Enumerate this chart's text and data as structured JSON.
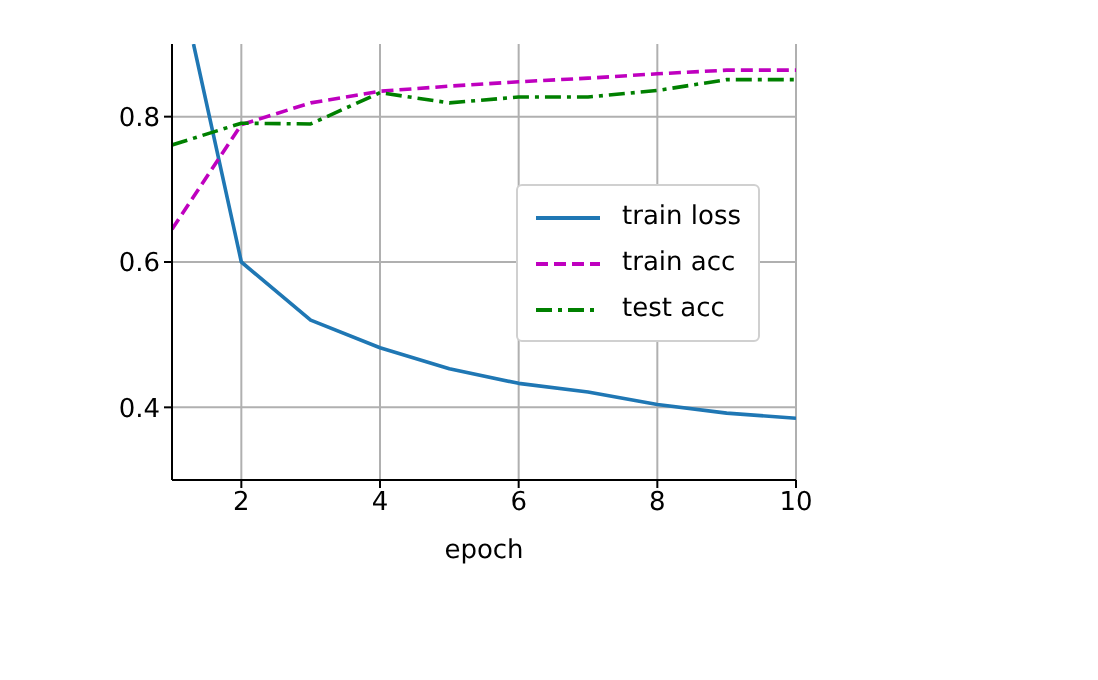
{
  "chart_data": {
    "type": "line",
    "xlabel": "epoch",
    "x": [
      1,
      2,
      3,
      4,
      5,
      6,
      7,
      8,
      9,
      10
    ],
    "xlim": [
      1,
      10
    ],
    "xticks": [
      2,
      4,
      6,
      8,
      10
    ],
    "ylim": [
      0.3,
      0.9
    ],
    "yticks": [
      0.4,
      0.6,
      0.8
    ],
    "grid": true,
    "legend": "right",
    "marker": "none",
    "series": [
      {
        "name": "train loss",
        "color": "#1f77b4",
        "line_style": "solid",
        "x": [
          1.31,
          2,
          3,
          4,
          5,
          6,
          7,
          8,
          9,
          10
        ],
        "values": [
          0.9,
          0.6,
          0.52,
          0.482,
          0.453,
          0.433,
          0.421,
          0.404,
          0.392,
          0.385
        ]
      },
      {
        "name": "train acc",
        "color": "#bf00bf",
        "line_style": "dashed",
        "values": [
          0.645,
          0.789,
          0.819,
          0.835,
          0.842,
          0.848,
          0.853,
          0.859,
          0.864,
          0.864
        ]
      },
      {
        "name": "test acc",
        "color": "#008000",
        "line_style": "dashdot",
        "values": [
          0.761,
          0.791,
          0.79,
          0.833,
          0.819,
          0.827,
          0.827,
          0.836,
          0.851,
          0.851
        ]
      }
    ]
  }
}
